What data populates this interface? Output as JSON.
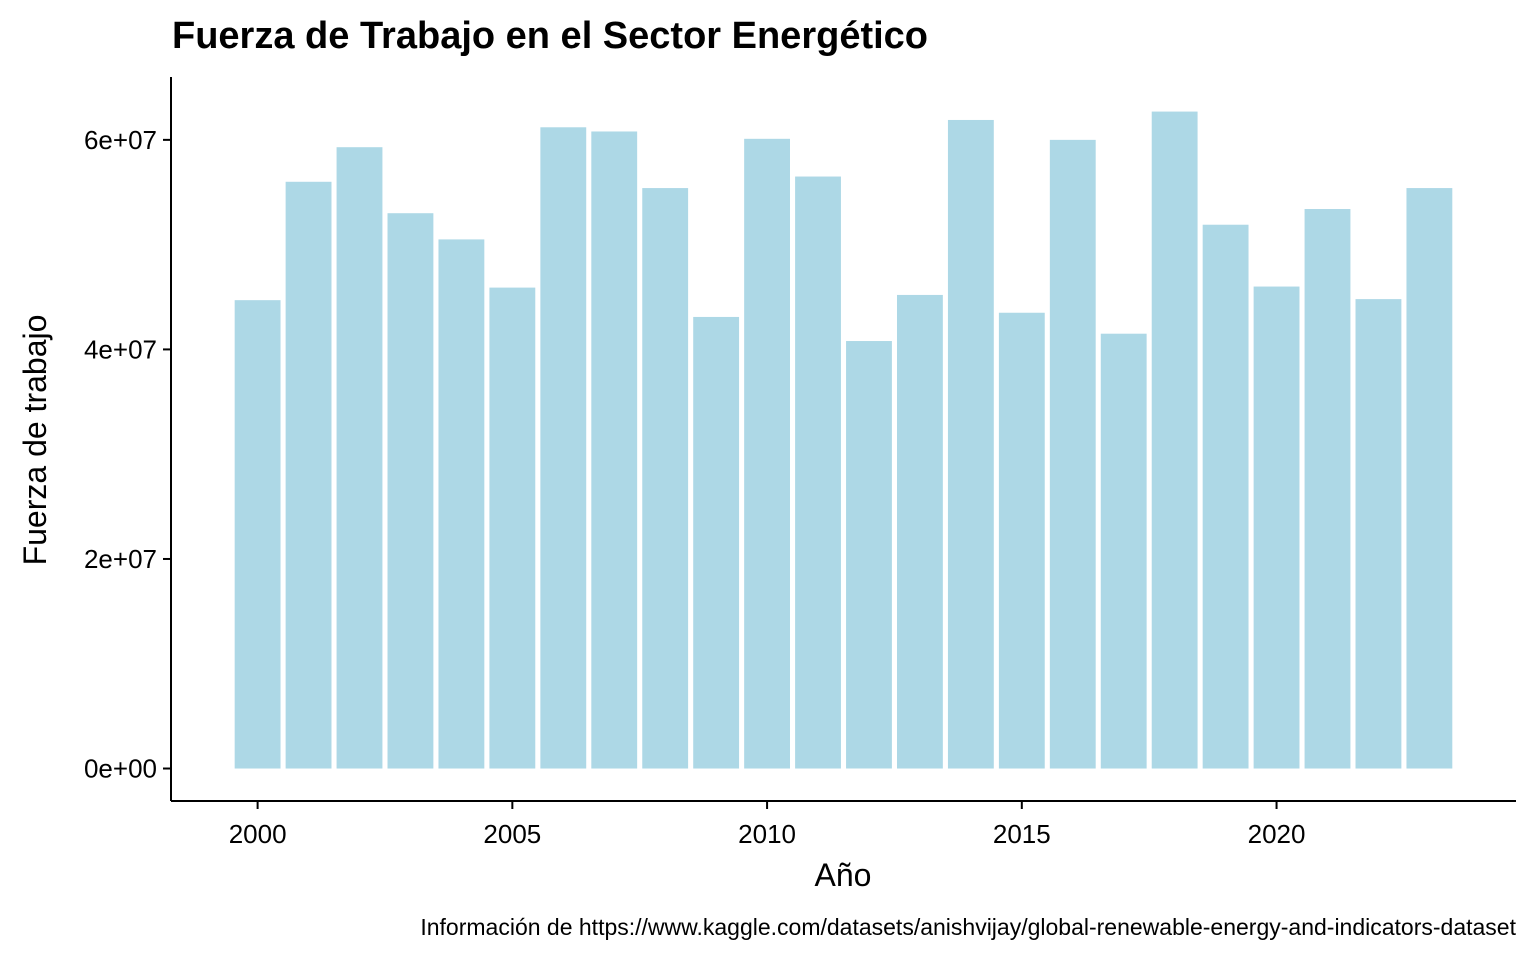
{
  "chart_data": {
    "type": "bar",
    "title": "Fuerza de Trabajo en el Sector Energético",
    "xlabel": "Año",
    "ylabel": "Fuerza de trabajo",
    "caption": "Información de https://www.kaggle.com/datasets/anishvijay/global-renewable-energy-and-indicators-dataset",
    "bar_color": "#add8e6",
    "axis_color": "#000000",
    "grid": false,
    "legend": "none",
    "x": [
      2000,
      2001,
      2002,
      2003,
      2004,
      2005,
      2006,
      2007,
      2008,
      2009,
      2010,
      2011,
      2012,
      2013,
      2014,
      2015,
      2016,
      2017,
      2018,
      2019,
      2020,
      2021,
      2022,
      2023
    ],
    "values": [
      44700000,
      56000000,
      59300000,
      53000000,
      50500000,
      45900000,
      61200000,
      60800000,
      55400000,
      43100000,
      60100000,
      56500000,
      40800000,
      45200000,
      61900000,
      43500000,
      60000000,
      41500000,
      62700000,
      51900000,
      46000000,
      53400000,
      44800000,
      55400000
    ],
    "xlim": [
      1998.3,
      2024.7
    ],
    "ylim": [
      -3100000,
      66000000
    ],
    "x_ticks": [
      2000,
      2005,
      2010,
      2015,
      2020
    ],
    "x_tick_labels": [
      "2000",
      "2005",
      "2010",
      "2015",
      "2020"
    ],
    "y_ticks": [
      0,
      20000000,
      40000000,
      60000000
    ],
    "y_tick_labels": [
      "0e+00",
      "2e+07",
      "4e+07",
      "6e+07"
    ]
  }
}
